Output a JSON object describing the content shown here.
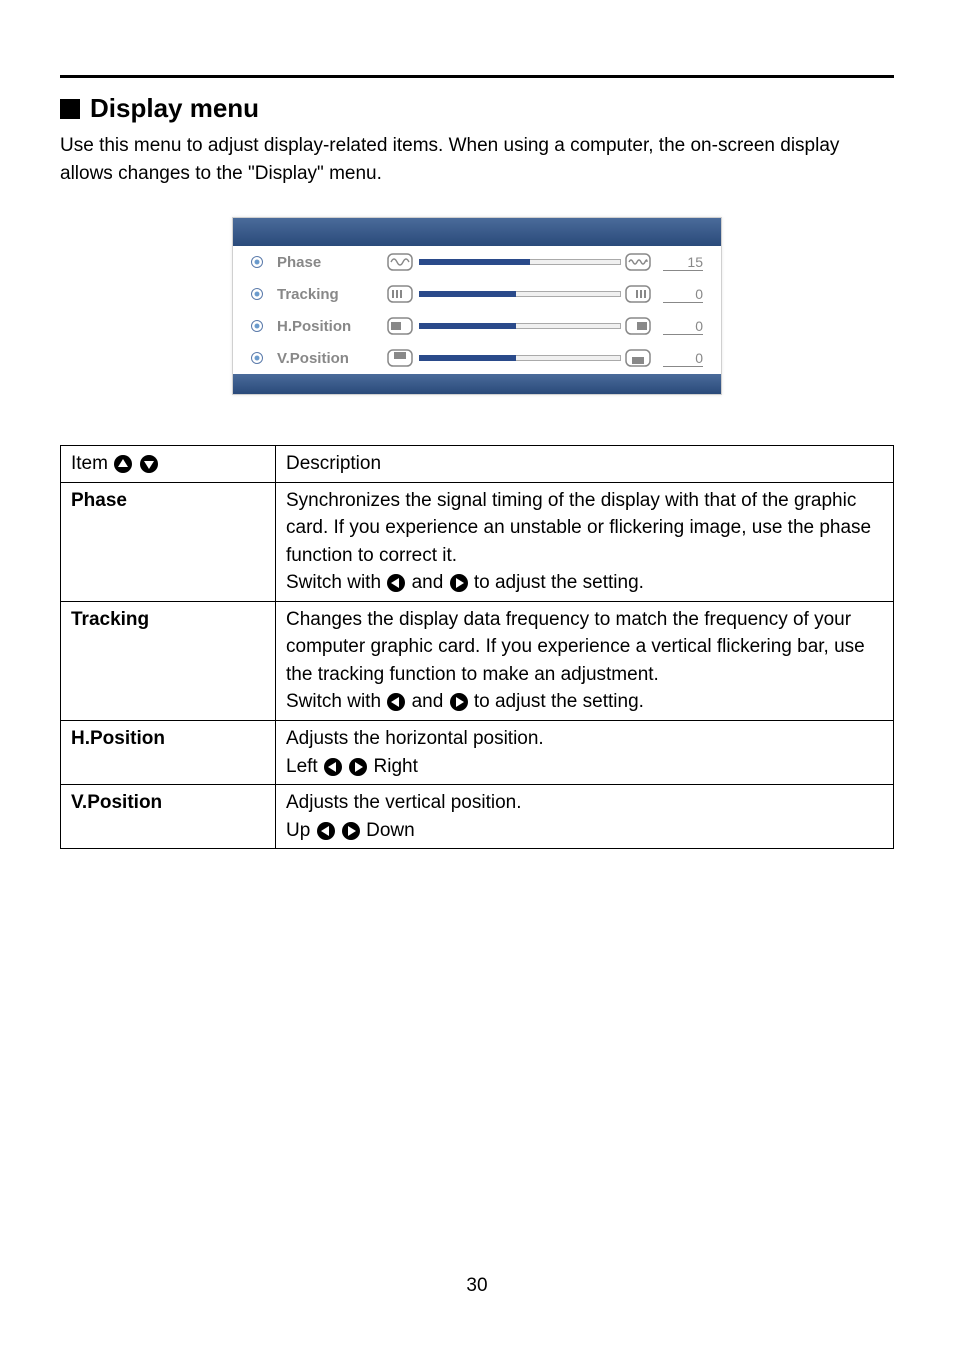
{
  "section_title": "Display menu",
  "intro_text": "Use this menu to adjust display-related items. When using a computer, the on-screen display allows changes to the \"Display\" menu.",
  "osd": {
    "rows": [
      {
        "label": "Phase",
        "value": "15",
        "fill_pct": 55,
        "icon_left": "wave1",
        "icon_right": "wave2"
      },
      {
        "label": "Tracking",
        "value": "0",
        "fill_pct": 48,
        "icon_left": "bars-l",
        "icon_right": "bars-r"
      },
      {
        "label": "H.Position",
        "value": "0",
        "fill_pct": 48,
        "icon_left": "rect-l",
        "icon_right": "rect-r"
      },
      {
        "label": "V.Position",
        "value": "0",
        "fill_pct": 48,
        "icon_left": "rect-t",
        "icon_right": "rect-b"
      }
    ]
  },
  "table": {
    "header_item": "Item",
    "header_desc": "Description",
    "rows": [
      {
        "name": "Phase",
        "desc_lines": [
          "Synchronizes the signal timing of the display with that of the graphic card. If you experience an unstable or flickering image, use the phase function to correct it.",
          "Switch with __LEFT__ and __RIGHT__ to adjust the setting."
        ]
      },
      {
        "name": "Tracking",
        "desc_lines": [
          "Changes the display data frequency to match the frequency of your computer graphic card. If you experience a vertical flickering bar, use the tracking function to make an adjustment.",
          "Switch with __LEFT__ and __RIGHT__ to adjust the setting."
        ]
      },
      {
        "name": "H.Position",
        "desc_lines": [
          "Adjusts the horizontal position.",
          "Left __LEFT__ __RIGHT__ Right"
        ]
      },
      {
        "name": "V.Position",
        "desc_lines": [
          "Adjusts the vertical position.",
          "Up __LEFT__ __RIGHT__ Down"
        ]
      }
    ]
  },
  "page_number": "30"
}
